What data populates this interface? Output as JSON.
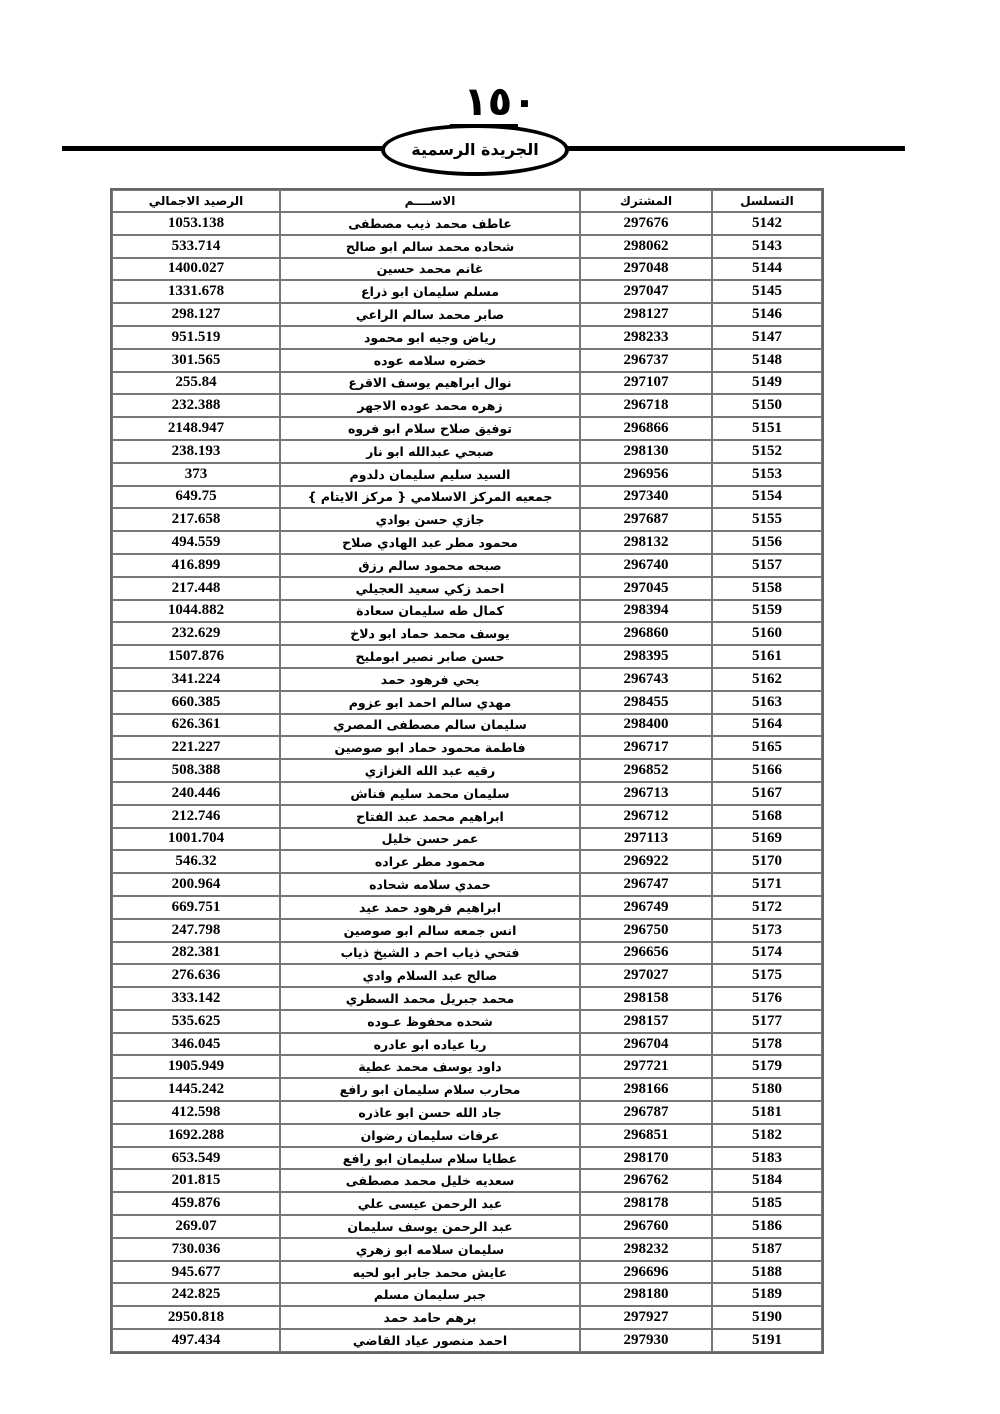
{
  "header": {
    "page_number": "١٥٠",
    "publication": "الجريدة الرسمية"
  },
  "table": {
    "columns": [
      "التسلسل",
      "المشترك",
      "الاســــم",
      "الرصيد الاجمالي"
    ],
    "rows": [
      [
        "5142",
        "297676",
        "عاطف  محمد ذيب مصطفى",
        "1053.138"
      ],
      [
        "5143",
        "298062",
        "شحاده محمد سالم ابو صالح",
        "533.714"
      ],
      [
        "5144",
        "297048",
        "غانم محمد حسين",
        "1400.027"
      ],
      [
        "5145",
        "297047",
        "مسلم سليمان ابو ذراع",
        "1331.678"
      ],
      [
        "5146",
        "298127",
        "صابر محمد سالم الراعي",
        "298.127"
      ],
      [
        "5147",
        "298233",
        "رياض وجيه ابو محمود",
        "951.519"
      ],
      [
        "5148",
        "296737",
        "خضره سلامه عوده",
        "301.565"
      ],
      [
        "5149",
        "297107",
        "نوال ابراهيم يوسف الاقرع",
        "255.84"
      ],
      [
        "5150",
        "296718",
        "زهره محمد عوده الاجهر",
        "232.388"
      ],
      [
        "5151",
        "296866",
        "توفيق صلاح سلام ابو فروه",
        "2148.947"
      ],
      [
        "5152",
        "298130",
        "صبحي عبدالله ابو نار",
        "238.193"
      ],
      [
        "5153",
        "296956",
        "السيد سليم سليمان دلدوم",
        "373"
      ],
      [
        "5154",
        "297340",
        "جمعيه المركز الاسلامي { مركز الايتام }",
        "649.75"
      ],
      [
        "5155",
        "297687",
        "جازي حسن بوادي",
        "217.658"
      ],
      [
        "5156",
        "298132",
        "محمود مطر عبد الهادي صلاح",
        "494.559"
      ],
      [
        "5157",
        "296740",
        "صبحه محمود سالم رزق",
        "416.899"
      ],
      [
        "5158",
        "297045",
        "احمد زكي سعيد العجيلي",
        "217.448"
      ],
      [
        "5159",
        "298394",
        "كمال طه سليمان سعادة",
        "1044.882"
      ],
      [
        "5160",
        "296860",
        "يوسف محمد حماد ابو دلاخ",
        "232.629"
      ],
      [
        "5161",
        "298395",
        "حسن صابر نصير ابومليح",
        "1507.876"
      ],
      [
        "5162",
        "296743",
        "يحي فرهود حمد",
        "341.224"
      ],
      [
        "5163",
        "298455",
        "مهدي سالم احمد ابو عزوم",
        "660.385"
      ],
      [
        "5164",
        "298400",
        "سليمان سالم مصطفى المصري",
        "626.361"
      ],
      [
        "5165",
        "296717",
        "فاطمة محمود حماد ابو صوصين",
        "221.227"
      ],
      [
        "5166",
        "296852",
        "رقيه عبد الله الغزازي",
        "508.388"
      ],
      [
        "5167",
        "296713",
        "سليمان محمد سليم فناش",
        "240.446"
      ],
      [
        "5168",
        "296712",
        "ابراهيم محمد عبد الفتاح",
        "212.746"
      ],
      [
        "5169",
        "297113",
        "عمر حسن خليل",
        "1001.704"
      ],
      [
        "5170",
        "296922",
        "محمود مطر عراده",
        "546.32"
      ],
      [
        "5171",
        "296747",
        "حمدي سلامه شحاده",
        "200.964"
      ],
      [
        "5172",
        "296749",
        "ابراهيم فرهود حمد عيد",
        "669.751"
      ],
      [
        "5173",
        "296750",
        "انس جمعه سالم ابو صوصين",
        "247.798"
      ],
      [
        "5174",
        "296656",
        "فتحي ذياب احم د الشيخ ذياب",
        "282.381"
      ],
      [
        "5175",
        "297027",
        "صالح عبد السلام وادي",
        "276.636"
      ],
      [
        "5176",
        "298158",
        "محمد جبريل محمد السطري",
        "333.142"
      ],
      [
        "5177",
        "298157",
        "شحده محفوظ عـوده",
        "535.625"
      ],
      [
        "5178",
        "296704",
        "ريا عياده ابو عادره",
        "346.045"
      ],
      [
        "5179",
        "297721",
        "داود يوسف محمد عطية",
        "1905.949"
      ],
      [
        "5180",
        "298166",
        "محارب سلام سليمان ابو رافع",
        "1445.242"
      ],
      [
        "5181",
        "296787",
        "جاد الله حسن ابو عاذره",
        "412.598"
      ],
      [
        "5182",
        "296851",
        "عرفات سليمان رضوان",
        "1692.288"
      ],
      [
        "5183",
        "298170",
        "عطايا سلام سليمان ابو رافع",
        "653.549"
      ],
      [
        "5184",
        "296762",
        "سعديه خليل محمد مصطفى",
        "201.815"
      ],
      [
        "5185",
        "298178",
        "عبد الرحمن عيسى علي",
        "459.876"
      ],
      [
        "5186",
        "296760",
        "عبد الرحمن يوسف سليمان",
        "269.07"
      ],
      [
        "5187",
        "298232",
        "سليمان سلامه ابو زهري",
        "730.036"
      ],
      [
        "5188",
        "296696",
        "عايش محمد جابر ابو لحيه",
        "945.677"
      ],
      [
        "5189",
        "298180",
        "جبر سليمان مسلم",
        "242.825"
      ],
      [
        "5190",
        "297927",
        "برهم  حامد حمد",
        "2950.818"
      ],
      [
        "5191",
        "297930",
        "احمد منصور عياد القاضي",
        "497.434"
      ]
    ]
  }
}
